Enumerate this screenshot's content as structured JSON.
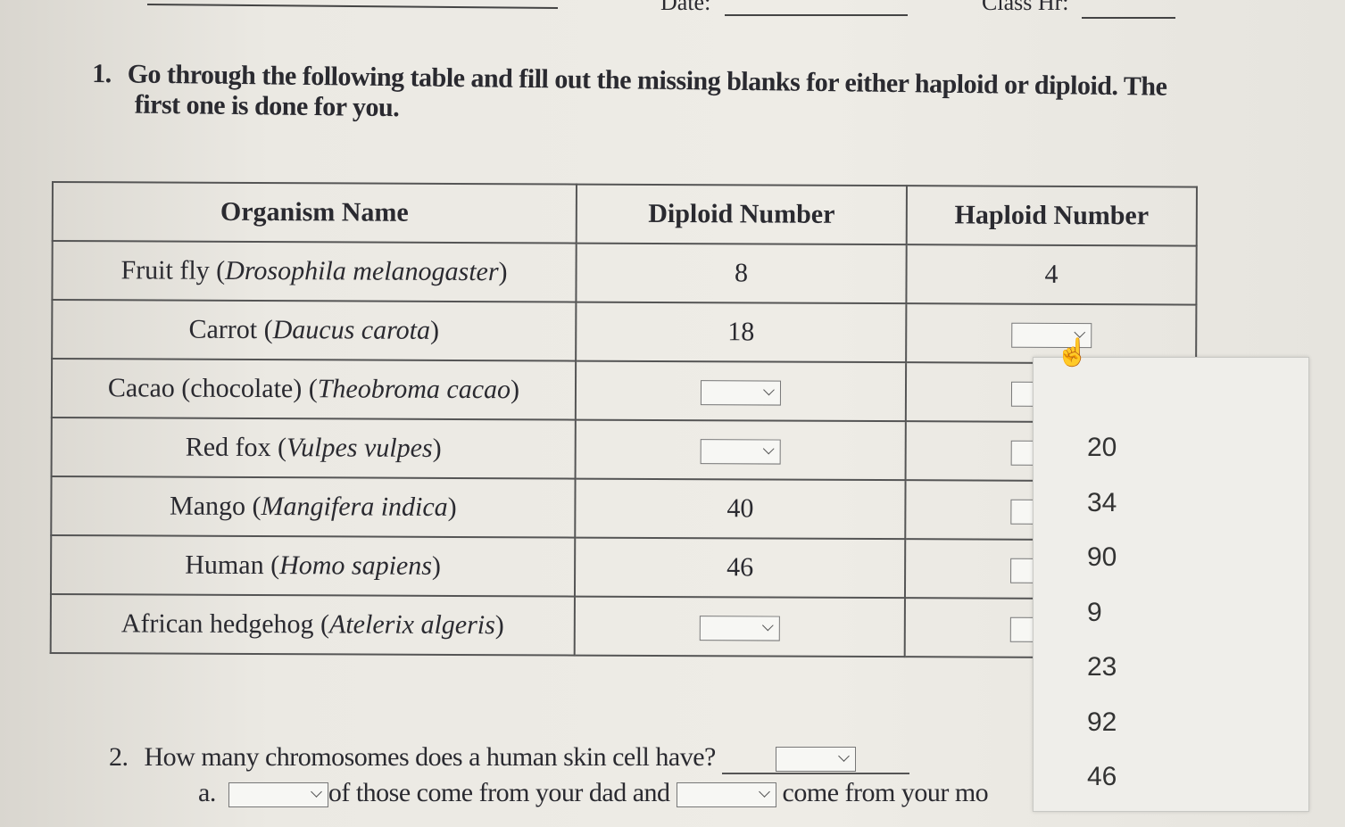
{
  "header": {
    "date_label": "Date:",
    "class_label": "Class Hr:"
  },
  "question1": {
    "number": "1.",
    "text_line1": "Go through the following table and fill out the missing blanks for either haploid or diploid. The",
    "text_line2": "first one is done for you."
  },
  "table": {
    "headers": [
      "Organism Name",
      "Diploid Number",
      "Haploid Number"
    ],
    "rows": [
      {
        "common": "Fruit fly (",
        "sci": "Drosophila melanogaster",
        "close": ")",
        "diploid": "8",
        "haploid": "4"
      },
      {
        "common": "Carrot (",
        "sci": "Daucus carota",
        "close": ")",
        "diploid": "18",
        "haploid": null
      },
      {
        "common": "Cacao (chocolate) (",
        "sci": "Theobroma cacao",
        "close": ")",
        "diploid": null,
        "haploid": null
      },
      {
        "common": "Red fox (",
        "sci": "Vulpes vulpes",
        "close": ")",
        "diploid": null,
        "haploid": null
      },
      {
        "common": "Mango (",
        "sci": "Mangifera indica",
        "close": ")",
        "diploid": "40",
        "haploid": null
      },
      {
        "common": "Human (",
        "sci": "Homo sapiens",
        "close": ")",
        "diploid": "46",
        "haploid": null
      },
      {
        "common": "African hedgehog (",
        "sci": "Atelerix algeris",
        "close": ")",
        "diploid": null,
        "haploid": null
      }
    ]
  },
  "question2": {
    "number": "2.",
    "text": "How many chromosomes does a human skin cell have?",
    "sub_label": "a.",
    "sub_text1": "of those come from your dad and",
    "sub_text2": "come from your mo"
  },
  "dropdown_options": [
    "20",
    "34",
    "90",
    "9",
    "23",
    "92",
    "46"
  ]
}
